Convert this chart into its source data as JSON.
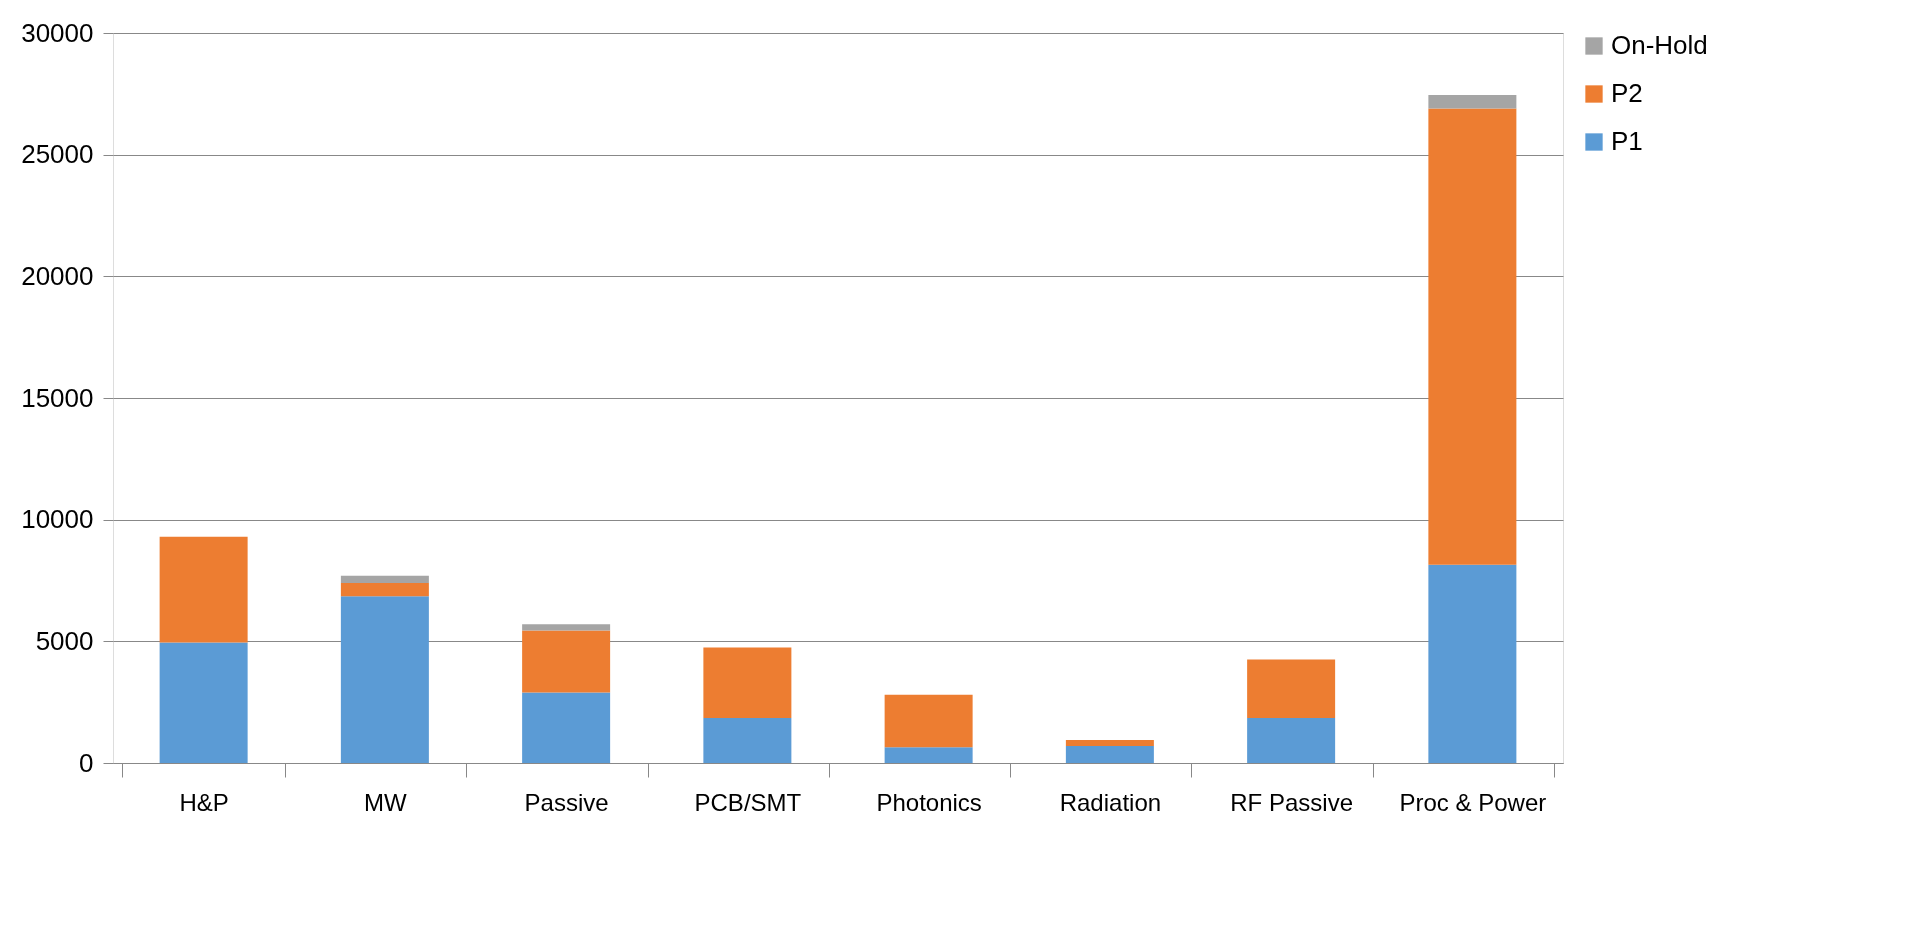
{
  "chart_data": {
    "type": "bar",
    "stacked": true,
    "categories": [
      "H&P",
      "MW",
      "Passive",
      "PCB/SMT",
      "Photonics",
      "Radiation",
      "RF Passive",
      "Proc & Power"
    ],
    "series": [
      {
        "name": "P1",
        "color": "#5b9bd5",
        "values": [
          4950,
          6850,
          2900,
          1850,
          650,
          700,
          1850,
          8150
        ]
      },
      {
        "name": "P2",
        "color": "#ed7d31",
        "values": [
          4350,
          550,
          2550,
          2900,
          2150,
          250,
          2400,
          18750
        ]
      },
      {
        "name": "On-Hold",
        "color": "#a5a5a5",
        "values": [
          0,
          300,
          250,
          0,
          0,
          0,
          0,
          550
        ]
      }
    ],
    "ylim": [
      0,
      30000
    ],
    "yticks": [
      0,
      5000,
      10000,
      15000,
      20000,
      25000,
      30000
    ],
    "grid": "y",
    "legend": "right"
  }
}
